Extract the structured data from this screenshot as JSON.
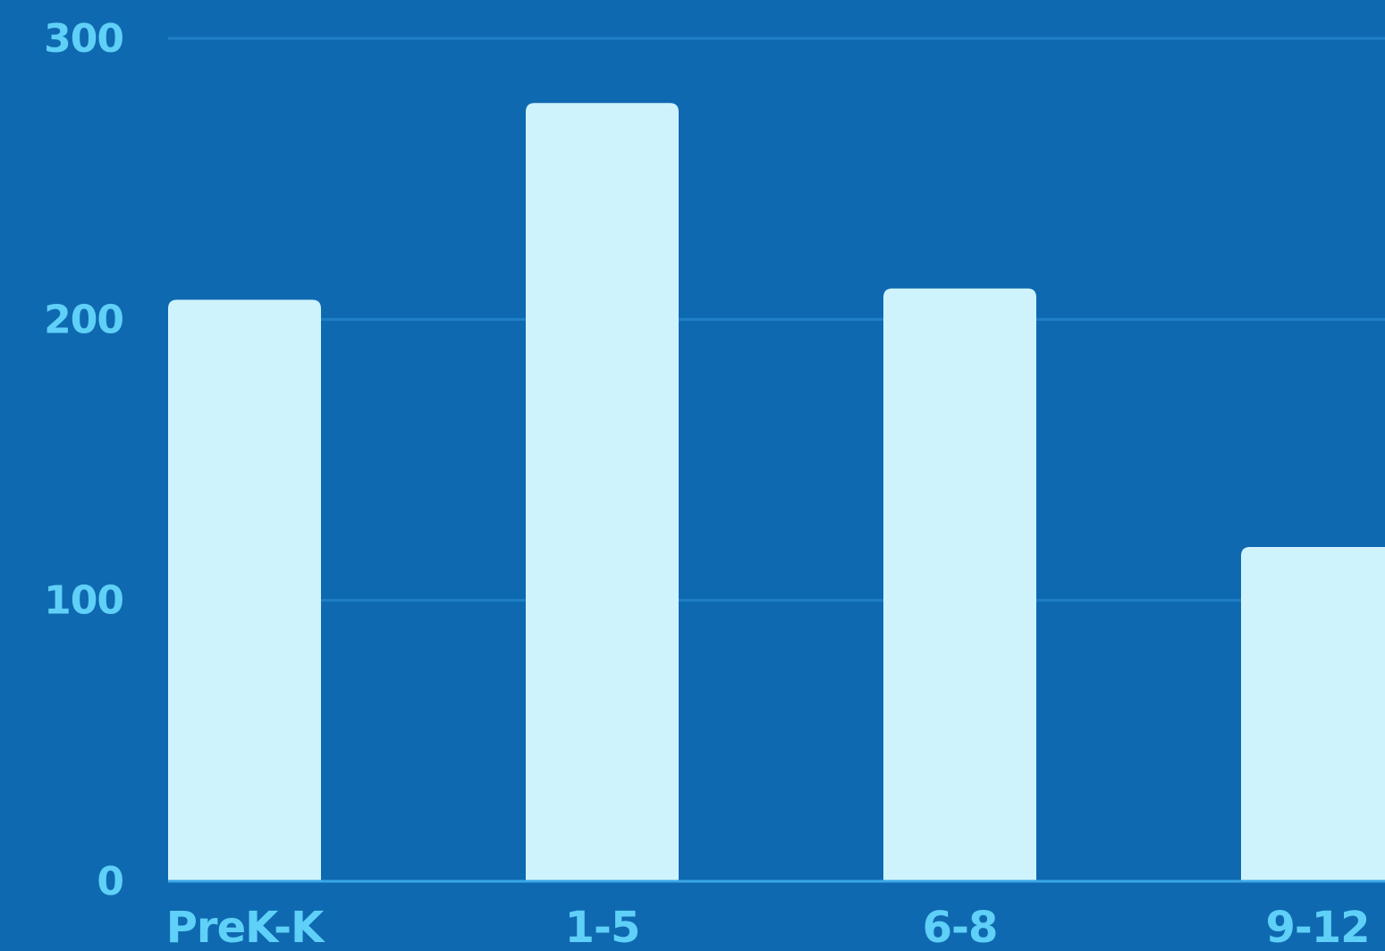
{
  "colors": {
    "background": "#0f69b0",
    "bar": "#cff3fc",
    "gridline": "#1f7fc6",
    "baseline": "#3aa6e6",
    "label": "#5fd0f7"
  },
  "chart_data": {
    "type": "bar",
    "title": "",
    "xlabel": "",
    "ylabel": "",
    "categories": [
      "PreK-K",
      "1-5",
      "6-8",
      "9-12"
    ],
    "values": [
      207,
      277,
      211,
      119
    ],
    "ylim": [
      0,
      300
    ],
    "yticks": [
      "0",
      "100",
      "200",
      "300"
    ],
    "grid": true,
    "legend": "none"
  }
}
